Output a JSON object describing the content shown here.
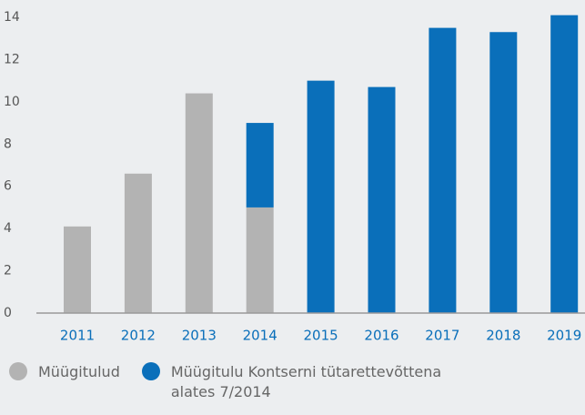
{
  "chart_data": {
    "type": "stacked_bar",
    "categories": [
      "2011",
      "2012",
      "2013",
      "2014",
      "2015",
      "2016",
      "2017",
      "2018",
      "2019"
    ],
    "series": [
      {
        "name": "Müügitulud",
        "color": "#b3b3b3",
        "values": [
          4.1,
          6.6,
          10.4,
          5.0,
          null,
          null,
          null,
          null,
          null
        ]
      },
      {
        "name": "Müügitulu Kontserni tütarettevõttena alates 7/2014",
        "color": "#0a6fba",
        "values": [
          null,
          null,
          null,
          4.0,
          11.0,
          10.7,
          13.5,
          13.3,
          14.1
        ]
      }
    ],
    "ylim": [
      0,
      14
    ],
    "yticks": [
      0,
      2,
      4,
      6,
      8,
      10,
      12,
      14
    ],
    "grid": false,
    "legend": "bottom-left"
  }
}
